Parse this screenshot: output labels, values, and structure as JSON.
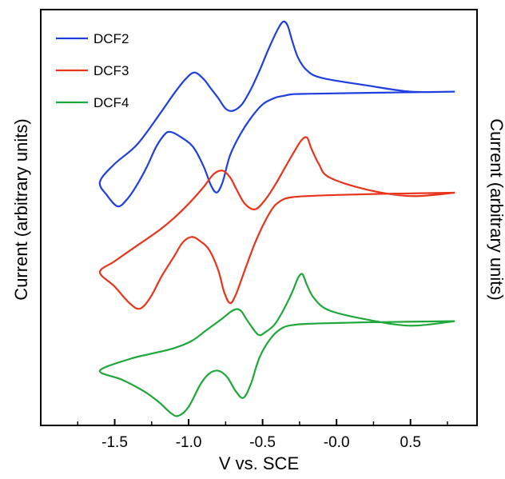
{
  "chart_data": {
    "type": "line",
    "title": "",
    "xlabel": "V vs. SCE",
    "ylabel": "Current (arbitrary units)",
    "ylabel_right": "Current (arbitrary units)",
    "xlim": [
      -2.0,
      0.95
    ],
    "x_ticks": [
      -1.5,
      -1.0,
      -0.5,
      0.0,
      0.5
    ],
    "x_tick_labels": [
      "-1.5",
      "-1.0",
      "-0.5",
      "-0.0",
      "0.5"
    ],
    "y_ticks_shown": false,
    "grid": false,
    "legend_position": "top-left",
    "series": [
      {
        "name": "DCF2",
        "color": "#1f3fe0",
        "x": [
          0.8,
          0.5,
          0.2,
          -0.1,
          -0.2,
          -0.26,
          -0.3,
          -0.33,
          -0.36,
          -0.4,
          -0.46,
          -0.52,
          -0.58,
          -0.64,
          -0.7,
          -0.75,
          -0.8,
          -0.85,
          -0.9,
          -0.96,
          -1.02,
          -1.1,
          -1.2,
          -1.35,
          -1.5,
          -1.6,
          -1.55,
          -1.48,
          -1.42,
          -1.35,
          -1.28,
          -1.22,
          -1.16,
          -1.12,
          -1.05,
          -0.97,
          -0.9,
          -0.85,
          -0.81,
          -0.77,
          -0.72,
          -0.65,
          -0.58,
          -0.5,
          -0.42,
          -0.36,
          -0.3,
          -0.2,
          0.3,
          0.8
        ],
        "y": [
          0.1,
          0.1,
          0.16,
          0.23,
          0.3,
          0.42,
          0.58,
          0.72,
          0.76,
          0.68,
          0.5,
          0.3,
          0.12,
          -0.02,
          -0.08,
          -0.06,
          0.04,
          0.13,
          0.22,
          0.28,
          0.22,
          0.08,
          -0.12,
          -0.4,
          -0.58,
          -0.75,
          -0.88,
          -0.98,
          -0.92,
          -0.78,
          -0.6,
          -0.42,
          -0.3,
          -0.28,
          -0.33,
          -0.42,
          -0.6,
          -0.78,
          -0.85,
          -0.75,
          -0.5,
          -0.3,
          -0.15,
          -0.02,
          0.04,
          0.06,
          0.075,
          0.08,
          0.09,
          0.1
        ]
      },
      {
        "name": "DCF3",
        "color": "#e8341a",
        "x": [
          0.8,
          0.5,
          0.2,
          -0.05,
          -0.12,
          -0.17,
          -0.2,
          -0.24,
          -0.3,
          -0.36,
          -0.42,
          -0.48,
          -0.55,
          -0.62,
          -0.68,
          -0.72,
          -0.77,
          -0.83,
          -0.9,
          -1.0,
          -1.1,
          -1.2,
          -1.35,
          -1.5,
          -1.6,
          -1.5,
          -1.4,
          -1.33,
          -1.26,
          -1.18,
          -1.1,
          -1.04,
          -0.98,
          -0.92,
          -0.86,
          -0.8,
          -0.76,
          -0.72,
          -0.68,
          -0.62,
          -0.55,
          -0.48,
          -0.42,
          -0.36,
          -0.3,
          -0.2,
          0.0,
          0.3,
          0.8
        ],
        "y": [
          0.1,
          0.07,
          0.13,
          0.24,
          0.36,
          0.5,
          0.6,
          0.57,
          0.44,
          0.3,
          0.16,
          0.04,
          -0.05,
          0.0,
          0.14,
          0.24,
          0.3,
          0.27,
          0.15,
          0.0,
          -0.13,
          -0.24,
          -0.38,
          -0.52,
          -0.62,
          -0.75,
          -0.9,
          -0.95,
          -0.85,
          -0.65,
          -0.48,
          -0.35,
          -0.3,
          -0.34,
          -0.42,
          -0.6,
          -0.8,
          -0.9,
          -0.82,
          -0.6,
          -0.35,
          -0.15,
          -0.02,
          0.04,
          0.06,
          0.07,
          0.08,
          0.09,
          0.1
        ]
      },
      {
        "name": "DCF4",
        "color": "#1ea83a",
        "x": [
          0.8,
          0.5,
          0.2,
          -0.05,
          -0.15,
          -0.2,
          -0.23,
          -0.26,
          -0.3,
          -0.36,
          -0.42,
          -0.48,
          -0.53,
          -0.6,
          -0.65,
          -0.7,
          -0.78,
          -0.88,
          -0.98,
          -1.1,
          -1.25,
          -1.4,
          -1.6,
          -1.45,
          -1.3,
          -1.2,
          -1.12,
          -1.07,
          -1.0,
          -0.92,
          -0.86,
          -0.8,
          -0.74,
          -0.68,
          -0.63,
          -0.58,
          -0.52,
          -0.44,
          -0.36,
          -0.28,
          -0.2,
          0.0,
          0.3,
          0.8
        ],
        "y": [
          0.1,
          0.05,
          0.12,
          0.22,
          0.35,
          0.5,
          0.62,
          0.58,
          0.42,
          0.22,
          0.06,
          -0.02,
          -0.05,
          0.1,
          0.22,
          0.22,
          0.12,
          0.0,
          -0.12,
          -0.2,
          -0.26,
          -0.32,
          -0.45,
          -0.55,
          -0.68,
          -0.8,
          -0.92,
          -0.95,
          -0.85,
          -0.6,
          -0.48,
          -0.45,
          -0.52,
          -0.68,
          -0.75,
          -0.6,
          -0.3,
          -0.08,
          0.03,
          0.06,
          0.07,
          0.08,
          0.09,
          0.1
        ]
      }
    ]
  }
}
